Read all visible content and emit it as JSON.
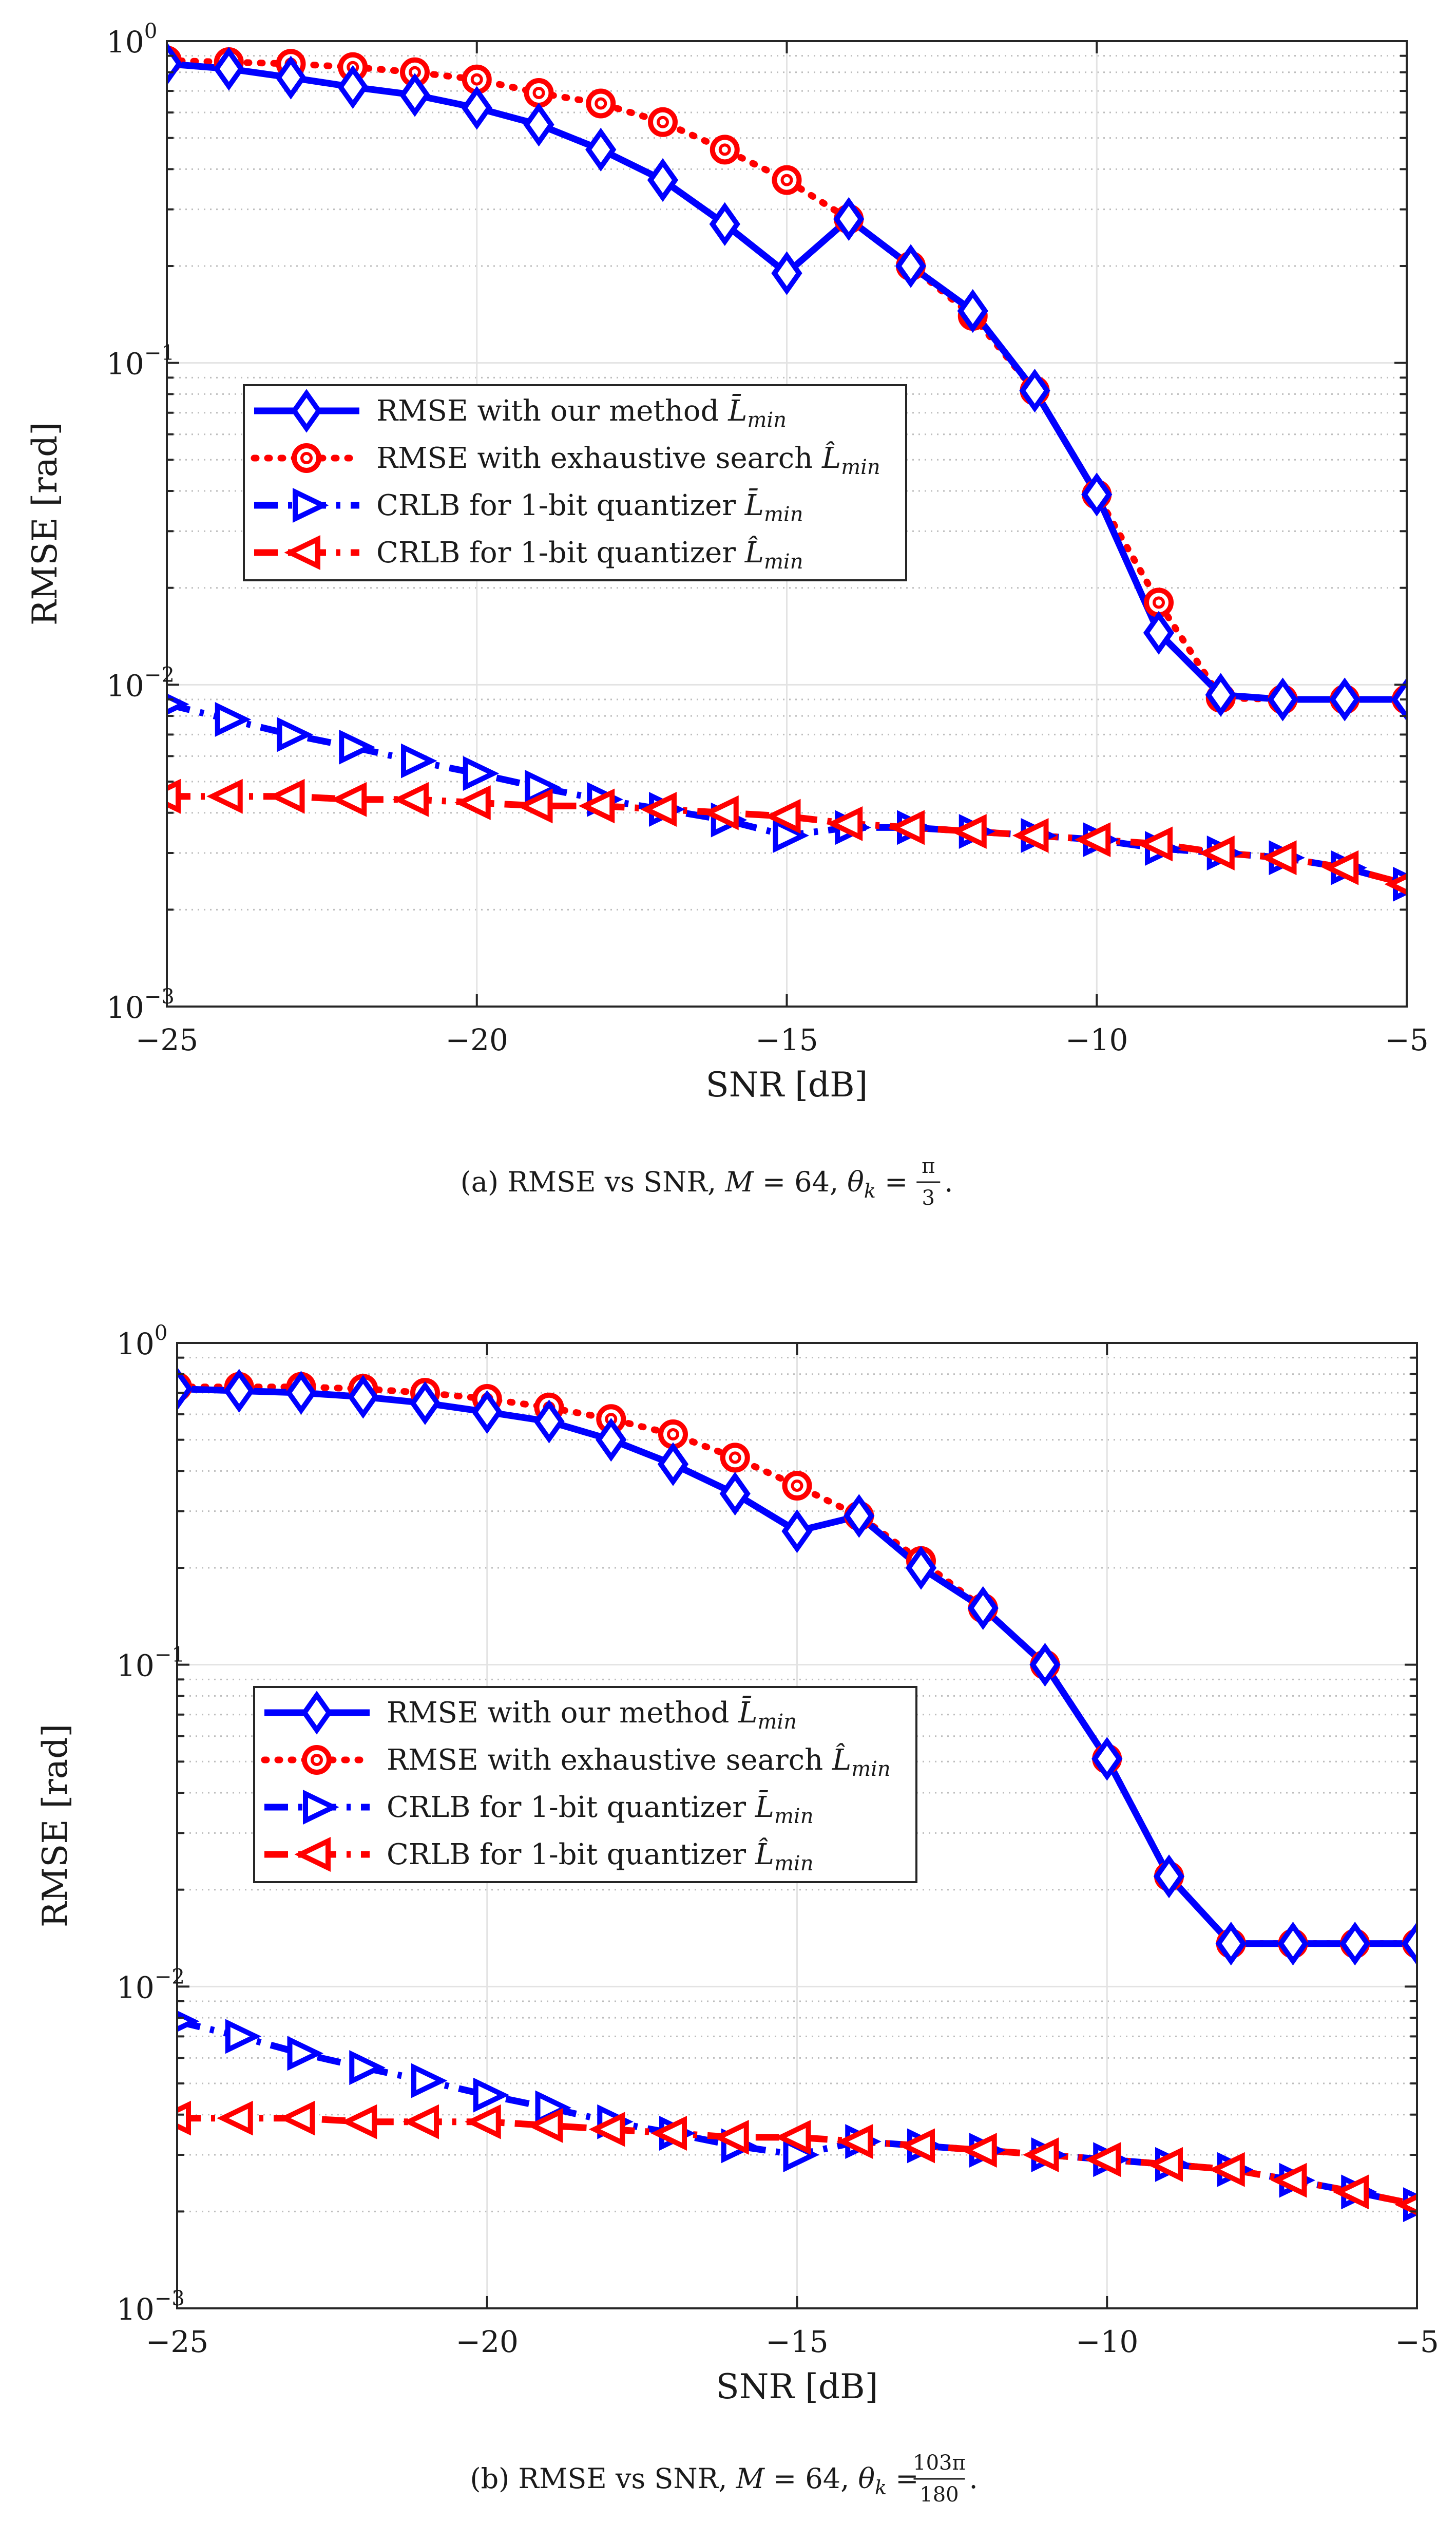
{
  "chart_data": [
    {
      "type": "line",
      "subplot_label": "(a)",
      "caption": {
        "prefix": "(a)",
        "text": "RMSE vs SNR,",
        "m_sym": "M",
        "m_eq": " = 64,",
        "theta_sym": "θ",
        "theta_sub": "k",
        "theta_eq": " =",
        "frac_num": "π",
        "frac_den": "3",
        "end": "."
      },
      "xlabel": "SNR [dB]",
      "ylabel": "RMSE [rad]",
      "xlim": [
        -25,
        -5
      ],
      "ylim": [
        0.001,
        1
      ],
      "yscale": "log",
      "grid": true,
      "legend_position": "center-left",
      "x_ticks": [
        -25,
        -20,
        -15,
        -10,
        -5
      ],
      "x_tick_labels": [
        "−25",
        "−20",
        "−15",
        "−10",
        "−5"
      ],
      "y_ticks": [
        {
          "value": 1,
          "base": "10",
          "exp": "0"
        },
        {
          "value": 0.1,
          "base": "10",
          "exp": "−1"
        },
        {
          "value": 0.01,
          "base": "10",
          "exp": "−2"
        },
        {
          "value": 0.001,
          "base": "10",
          "exp": "−3"
        }
      ],
      "x": [
        -25,
        -24,
        -23,
        -22,
        -21,
        -20,
        -19,
        -18,
        -17,
        -16,
        -15,
        -14,
        -13,
        -12,
        -11,
        -10,
        -9,
        -8,
        -7,
        -6,
        -5
      ],
      "series": [
        {
          "name": "RMSE with our method",
          "symbol": "L̄",
          "sub": "min",
          "color": "#0000ff",
          "dash": "solid",
          "marker": "diamond",
          "values": [
            0.85,
            0.82,
            0.77,
            0.72,
            0.68,
            0.62,
            0.55,
            0.46,
            0.37,
            0.27,
            0.19,
            0.28,
            0.2,
            0.145,
            0.082,
            0.039,
            0.0145,
            0.0093,
            0.009,
            0.009,
            0.009
          ]
        },
        {
          "name": "RMSE with exhaustive search",
          "symbol": "L̂",
          "sub": "min",
          "color": "#ff0000",
          "dash": "dotted",
          "marker": "circle",
          "values": [
            0.87,
            0.86,
            0.85,
            0.83,
            0.8,
            0.76,
            0.69,
            0.64,
            0.56,
            0.46,
            0.37,
            0.28,
            0.2,
            0.14,
            0.082,
            0.039,
            0.018,
            0.0091,
            0.009,
            0.009,
            0.009
          ]
        },
        {
          "name": "CRLB for 1-bit quantizer",
          "symbol": "L̄",
          "sub": "min",
          "color": "#0000ff",
          "dash": "dashdot",
          "marker": "triangle-right",
          "values": [
            0.0087,
            0.0078,
            0.007,
            0.0064,
            0.0058,
            0.0053,
            0.0048,
            0.0044,
            0.0041,
            0.0038,
            0.0034,
            0.0036,
            0.0036,
            0.0035,
            0.0034,
            0.0033,
            0.0031,
            0.003,
            0.0029,
            0.0027,
            0.0024
          ]
        },
        {
          "name": "CRLB for 1-bit quantizer",
          "symbol": "L̂",
          "sub": "min",
          "color": "#ff0000",
          "dash": "dashdot",
          "marker": "triangle-left",
          "values": [
            0.0045,
            0.0045,
            0.0045,
            0.0044,
            0.0044,
            0.0043,
            0.0042,
            0.0042,
            0.0041,
            0.004,
            0.0039,
            0.0037,
            0.0036,
            0.0035,
            0.0034,
            0.0033,
            0.0032,
            0.003,
            0.0029,
            0.0027,
            0.0024
          ]
        }
      ]
    },
    {
      "type": "line",
      "subplot_label": "(b)",
      "caption": {
        "prefix": "(b)",
        "text": "RMSE vs SNR,",
        "m_sym": "M",
        "m_eq": " = 64,",
        "theta_sym": "θ",
        "theta_sub": "k",
        "theta_eq": " =",
        "frac_num": "103π",
        "frac_den": "180",
        "end": "."
      },
      "xlabel": "SNR [dB]",
      "ylabel": "RMSE [rad]",
      "xlim": [
        -25,
        -5
      ],
      "ylim": [
        0.001,
        1
      ],
      "yscale": "log",
      "grid": true,
      "legend_position": "center-left",
      "x_ticks": [
        -25,
        -20,
        -15,
        -10,
        -5
      ],
      "x_tick_labels": [
        "−25",
        "−20",
        "−15",
        "−10",
        "−5"
      ],
      "y_ticks": [
        {
          "value": 1,
          "base": "10",
          "exp": "0"
        },
        {
          "value": 0.1,
          "base": "10",
          "exp": "−1"
        },
        {
          "value": 0.01,
          "base": "10",
          "exp": "−2"
        },
        {
          "value": 0.001,
          "base": "10",
          "exp": "−3"
        }
      ],
      "x": [
        -25,
        -24,
        -23,
        -22,
        -21,
        -20,
        -19,
        -18,
        -17,
        -16,
        -15,
        -14,
        -13,
        -12,
        -11,
        -10,
        -9,
        -8,
        -7,
        -6,
        -5
      ],
      "series": [
        {
          "name": "RMSE with our method",
          "symbol": "L̄",
          "sub": "min",
          "color": "#0000ff",
          "dash": "solid",
          "marker": "diamond",
          "values": [
            0.72,
            0.71,
            0.7,
            0.68,
            0.65,
            0.61,
            0.57,
            0.5,
            0.42,
            0.34,
            0.26,
            0.29,
            0.2,
            0.15,
            0.1,
            0.051,
            0.022,
            0.0136,
            0.0136,
            0.0136,
            0.0136
          ]
        },
        {
          "name": "RMSE with exhaustive search",
          "symbol": "L̂",
          "sub": "min",
          "color": "#ff0000",
          "dash": "dotted",
          "marker": "circle",
          "values": [
            0.73,
            0.73,
            0.73,
            0.72,
            0.7,
            0.67,
            0.63,
            0.58,
            0.52,
            0.44,
            0.36,
            0.29,
            0.21,
            0.15,
            0.1,
            0.051,
            0.022,
            0.0136,
            0.0136,
            0.0136,
            0.0136
          ]
        },
        {
          "name": "CRLB for 1-bit quantizer",
          "symbol": "L̄",
          "sub": "min",
          "color": "#0000ff",
          "dash": "dashdot",
          "marker": "triangle-right",
          "values": [
            0.0078,
            0.007,
            0.0062,
            0.0056,
            0.0051,
            0.0046,
            0.0042,
            0.0038,
            0.0035,
            0.0032,
            0.003,
            0.0033,
            0.0032,
            0.0031,
            0.003,
            0.0029,
            0.0028,
            0.0027,
            0.0025,
            0.0023,
            0.0021
          ]
        },
        {
          "name": "CRLB for 1-bit quantizer",
          "symbol": "L̂",
          "sub": "min",
          "color": "#ff0000",
          "dash": "dashdot",
          "marker": "triangle-left",
          "values": [
            0.0039,
            0.0039,
            0.0039,
            0.0038,
            0.0038,
            0.0038,
            0.0037,
            0.0036,
            0.0035,
            0.0034,
            0.0034,
            0.0033,
            0.0032,
            0.0031,
            0.003,
            0.0029,
            0.0028,
            0.0027,
            0.0025,
            0.0023,
            0.0021
          ]
        }
      ]
    }
  ]
}
